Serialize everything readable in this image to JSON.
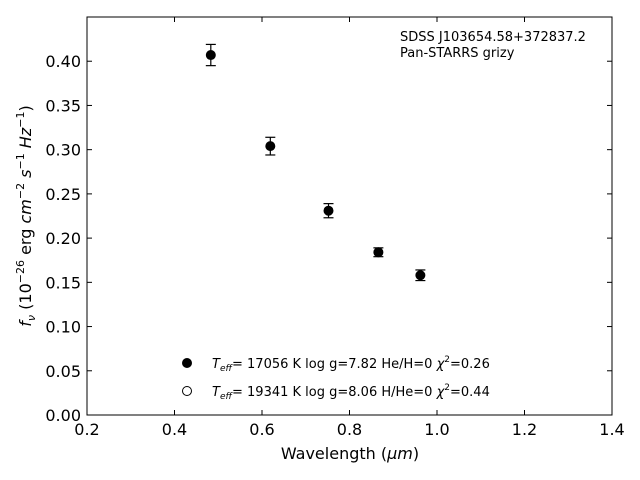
{
  "chart_data": {
    "type": "scatter",
    "annotation_lines": [
      "SDSS J103654.58+372837.2",
      "Pan-STARRS grizy"
    ],
    "xlabel": {
      "text": "Wavelength (",
      "unit": "μm",
      "close": ")"
    },
    "ylabel": {
      "f": "f",
      "nu": "ν",
      "open": " (10",
      "exp1": "−26",
      "erg": " erg ",
      "cm": "cm",
      "exp2": "−2",
      "s": " s",
      "exp3": "−1",
      "hz": " Hz",
      "exp4": "−1",
      "close": ")"
    },
    "xlim": [
      0.2,
      1.4
    ],
    "ylim": [
      0.0,
      0.45
    ],
    "x_ticks": [
      0.2,
      0.4,
      0.6,
      0.8,
      1.0,
      1.2,
      1.4
    ],
    "x_tick_labels": [
      "0.2",
      "0.4",
      "0.6",
      "0.8",
      "1.0",
      "1.2",
      "1.4"
    ],
    "y_ticks": [
      0.0,
      0.05,
      0.1,
      0.15,
      0.2,
      0.25,
      0.3,
      0.35,
      0.4
    ],
    "y_tick_labels": [
      "0.00",
      "0.05",
      "0.10",
      "0.15",
      "0.20",
      "0.25",
      "0.30",
      "0.35",
      "0.40"
    ],
    "grid": false,
    "legend_placement": "lower-center",
    "series": [
      {
        "marker": "filled-circle",
        "color": "#000000",
        "points": [
          {
            "x": 0.483,
            "y": 0.407,
            "err": 0.012
          },
          {
            "x": 0.619,
            "y": 0.304,
            "err": 0.01
          },
          {
            "x": 0.752,
            "y": 0.231,
            "err": 0.008
          },
          {
            "x": 0.866,
            "y": 0.184,
            "err": 0.005
          },
          {
            "x": 0.962,
            "y": 0.158,
            "err": 0.006
          }
        ]
      }
    ],
    "legend": [
      {
        "marker": "filled",
        "T": "T",
        "sub": "eff",
        "rest": "= 17056 K  log g=7.82  He/H=0  ",
        "chi": "χ",
        "sup": "2",
        "val": "=0.26"
      },
      {
        "marker": "open",
        "T": "T",
        "sub": "eff",
        "rest": "= 19341 K  log g=8.06  H/He=0  ",
        "chi": "χ",
        "sup": "2",
        "val": "=0.44"
      }
    ]
  }
}
